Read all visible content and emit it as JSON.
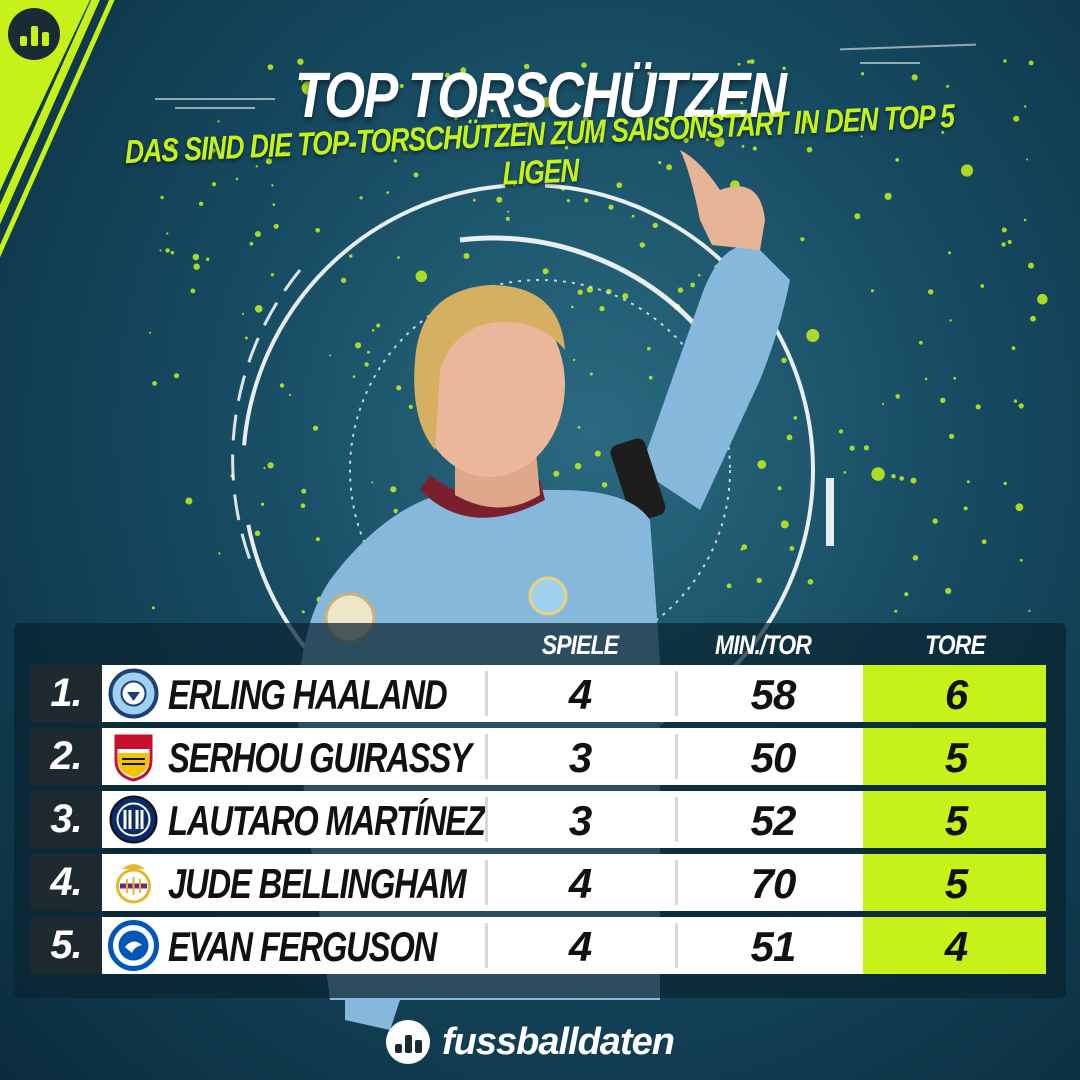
{
  "header": {
    "title": "TOP TORSCHÜTZEN",
    "subtitle": "DAS SIND DIE TOP-TORSCHÜTZEN ZUM SAISONSTART IN DEN TOP 5 LIGEN"
  },
  "colors": {
    "accent": "#c6f21a",
    "background": "#164a61",
    "rank_bg": "#1e2a30",
    "row_bg": "#ffffff",
    "player_shirt": "#86b8dc"
  },
  "table": {
    "columns": {
      "spiele": "SPIELE",
      "min_tor": "MIN./TOR",
      "tore": "TORE"
    },
    "rows": [
      {
        "rank": "1.",
        "name": "ERLING HAALAND",
        "club_icon": "manchester-city-crest-icon",
        "spiele": "4",
        "min_tor": "58",
        "tore": "6"
      },
      {
        "rank": "2.",
        "name": "SERHOU GUIRASSY",
        "club_icon": "vfb-stuttgart-crest-icon",
        "spiele": "3",
        "min_tor": "50",
        "tore": "5"
      },
      {
        "rank": "3.",
        "name": "LAUTARO MARTÍNEZ",
        "club_icon": "inter-milan-crest-icon",
        "spiele": "3",
        "min_tor": "52",
        "tore": "5"
      },
      {
        "rank": "4.",
        "name": "JUDE BELLINGHAM",
        "club_icon": "real-madrid-crest-icon",
        "spiele": "4",
        "min_tor": "70",
        "tore": "5"
      },
      {
        "rank": "5.",
        "name": "EVAN FERGUSON",
        "club_icon": "brighton-crest-icon",
        "spiele": "4",
        "min_tor": "51",
        "tore": "4"
      }
    ]
  },
  "footer": {
    "brand": "fussballdaten",
    "brand_icon": "bar-chart-logo-icon"
  }
}
